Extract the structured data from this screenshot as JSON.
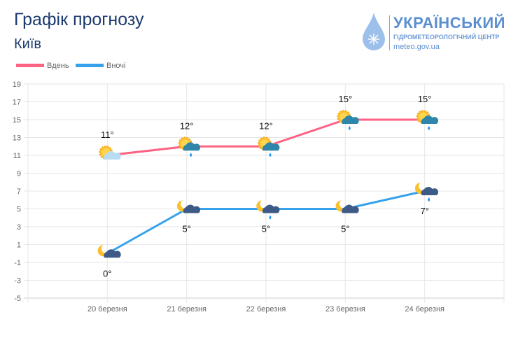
{
  "header": {
    "title": "Графік прогнозу",
    "city": "Київ"
  },
  "logo": {
    "main": "УКРАЇНСЬКИЙ",
    "sub": "ГІДРОМЕТЕОРОЛОГІЧНИЙ ЦЕНТР",
    "url": "meteo.gov.ua"
  },
  "chart_data": {
    "type": "line",
    "categories": [
      "20 березня",
      "21 березня",
      "22 березня",
      "23 березня",
      "24 березня"
    ],
    "series": [
      {
        "name": "Вдень",
        "color": "#ff6384",
        "values": [
          11,
          12,
          12,
          15,
          15
        ],
        "labels": [
          "11°",
          "12°",
          "12°",
          "15°",
          "15°"
        ],
        "icons": [
          "sun-cloud-icon",
          "sun-rain-cloud-icon",
          "sun-rain-cloud-icon",
          "sun-rain-cloud-icon",
          "sun-rain-cloud-icon"
        ]
      },
      {
        "name": "Вночі",
        "color": "#36a2eb",
        "values": [
          0,
          5,
          5,
          5,
          7
        ],
        "labels": [
          "0°",
          "5°",
          "5°",
          "5°",
          "7°"
        ],
        "icons": [
          "moon-cloud-icon",
          "moon-cloud-icon",
          "moon-rain-cloud-icon",
          "moon-cloud-icon",
          "moon-rain-cloud-icon"
        ]
      }
    ],
    "ylim": [
      -5,
      19
    ],
    "yticks": [
      "19",
      "17",
      "15",
      "13",
      "11",
      "9",
      "7",
      "5",
      "3",
      "1",
      "-1",
      "-3",
      "-5"
    ],
    "grid": true,
    "legend": "top-left"
  }
}
